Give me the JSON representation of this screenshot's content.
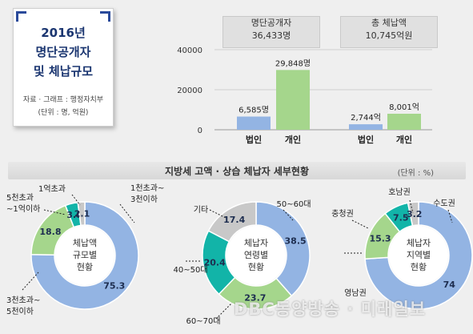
{
  "title_card": {
    "lines": [
      "2016년",
      "명단공개자",
      "및 체납규모"
    ],
    "source": "자료 · 그래프 : 행정자치부",
    "unit": "(단위 : 명, 억원)"
  },
  "colors": {
    "blue": "#93b4e3",
    "green": "#a5d68c",
    "teal": "#12b4a8",
    "gray": "#c8c8c8",
    "navy": "#1a3570"
  },
  "chart_data": [
    {
      "type": "bar",
      "title": "명단공개자",
      "subtitle": "36,433명",
      "categories": [
        "법인",
        "개인"
      ],
      "values": [
        6585,
        29848
      ],
      "value_labels": [
        "6,585명",
        "29,848명"
      ],
      "ylim": [
        0,
        40000
      ],
      "yticks": [
        0,
        20000,
        40000
      ],
      "ytick_labels": [
        "0",
        "20000",
        "40000"
      ],
      "grid": true
    },
    {
      "type": "bar",
      "title": "총 체납액",
      "subtitle": "10,745억원",
      "categories": [
        "법인",
        "개인"
      ],
      "values": [
        2744,
        8001
      ],
      "value_labels": [
        "2,744억",
        "8,001억"
      ],
      "ylim": [
        0,
        40000
      ]
    },
    {
      "type": "pie",
      "title": "지방세 고액 · 상습 체납자 세부현황",
      "unit": "(단위 : %)",
      "center_label": [
        "체납액",
        "규모별",
        "현황"
      ],
      "slices": [
        {
          "label": "1천초과~\n3천이하",
          "value": 75.3
        },
        {
          "label": "3천초과~\n5천이하",
          "value": 18.8
        },
        {
          "label": "5천초과\n~1억이하",
          "value": 3.8
        },
        {
          "label": "1억초과",
          "value": 2.1
        }
      ]
    },
    {
      "type": "pie",
      "center_label": [
        "체납자",
        "연령별",
        "현황"
      ],
      "slices": [
        {
          "label": "50~60대",
          "value": 38.5
        },
        {
          "label": "60~70대",
          "value": 23.7
        },
        {
          "label": "40~50대",
          "value": 20.4
        },
        {
          "label": "기타",
          "value": 17.4
        }
      ]
    },
    {
      "type": "pie",
      "center_label": [
        "체납자",
        "지역별",
        "현황"
      ],
      "slices": [
        {
          "label": "수도권",
          "value": 74
        },
        {
          "label": "영남권",
          "value": 15.3
        },
        {
          "label": "충청권",
          "value": 7.5
        },
        {
          "label": "호남권",
          "value": 3.2
        }
      ]
    }
  ],
  "watermark": "DBC동양방송 · 미래일보"
}
